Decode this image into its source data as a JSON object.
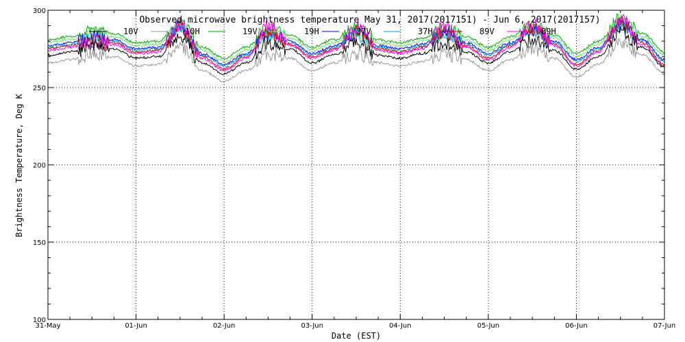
{
  "chart_data": {
    "type": "line",
    "title": "Observed microwave brightness temperature May 31, 2017(2017151) - Jun  6, 2017(2017157)",
    "xlabel": "Date (EST)",
    "ylabel": "Brightness Temperature, Deg K",
    "ylim": [
      100,
      300
    ],
    "yticks": [
      "100",
      "150",
      "200",
      "250",
      "300"
    ],
    "xticks": [
      "31-May",
      "01-Jun",
      "02-Jun",
      "03-Jun",
      "04-Jun",
      "05-Jun",
      "06-Jun",
      "07-Jun"
    ],
    "x_days": [
      0,
      1,
      2,
      3,
      4,
      5,
      6,
      7
    ],
    "grid": true,
    "legend_placement": "top",
    "legend": [
      {
        "name": "10V",
        "color": "#000000"
      },
      {
        "name": "10H",
        "color": "#999999"
      },
      {
        "name": "19V",
        "color": "#00aa00"
      },
      {
        "name": "19H",
        "color": "#77dd77"
      },
      {
        "name": "37V",
        "color": "#0000ff"
      },
      {
        "name": "37H",
        "color": "#00aacc"
      },
      {
        "name": "89V",
        "color": "#dd0000"
      },
      {
        "name": "89H",
        "color": "#ff00ff"
      }
    ],
    "series": [
      {
        "name": "19V",
        "color": "#00aa00",
        "x": [
          0,
          0.25,
          0.5,
          0.75,
          1.0,
          1.25,
          1.5,
          1.75,
          2.0,
          2.25,
          2.5,
          2.75,
          3.0,
          3.25,
          3.5,
          3.75,
          4.0,
          4.25,
          4.5,
          4.75,
          5.0,
          5.25,
          5.5,
          5.75,
          6.0,
          6.25,
          6.5,
          6.75,
          7.0
        ],
        "values": [
          281,
          283,
          286,
          285,
          279,
          280,
          292,
          276,
          269,
          276,
          288,
          284,
          276,
          281,
          288,
          281,
          279,
          282,
          288,
          283,
          276,
          283,
          290,
          284,
          272,
          280,
          294,
          285,
          273
        ]
      },
      {
        "name": "19H",
        "color": "#77dd77",
        "x": [
          0,
          0.25,
          0.5,
          0.75,
          1.0,
          1.25,
          1.5,
          1.75,
          2.0,
          2.25,
          2.5,
          2.75,
          3.0,
          3.25,
          3.5,
          3.75,
          4.0,
          4.25,
          4.5,
          4.75,
          5.0,
          5.25,
          5.5,
          5.75,
          6.0,
          6.25,
          6.5,
          6.75,
          7.0
        ],
        "values": [
          279,
          281,
          284,
          283,
          277,
          278,
          290,
          274,
          267,
          274,
          286,
          282,
          274,
          279,
          286,
          279,
          277,
          280,
          286,
          281,
          274,
          281,
          288,
          282,
          270,
          278,
          292,
          283,
          271
        ]
      },
      {
        "name": "37V",
        "color": "#0000ff",
        "x": [
          0,
          0.25,
          0.5,
          0.75,
          1.0,
          1.25,
          1.5,
          1.75,
          2.0,
          2.25,
          2.5,
          2.75,
          3.0,
          3.25,
          3.5,
          3.75,
          4.0,
          4.25,
          4.5,
          4.75,
          5.0,
          5.25,
          5.5,
          5.75,
          6.0,
          6.25,
          6.5,
          6.75,
          7.0
        ],
        "values": [
          277,
          279,
          282,
          281,
          275,
          276,
          289,
          272,
          265,
          272,
          285,
          280,
          272,
          277,
          285,
          277,
          275,
          278,
          285,
          279,
          272,
          279,
          287,
          280,
          268,
          276,
          291,
          281,
          268
        ]
      },
      {
        "name": "37H",
        "color": "#00aacc",
        "x": [
          0,
          0.25,
          0.5,
          0.75,
          1.0,
          1.25,
          1.5,
          1.75,
          2.0,
          2.25,
          2.5,
          2.75,
          3.0,
          3.25,
          3.5,
          3.75,
          4.0,
          4.25,
          4.5,
          4.75,
          5.0,
          5.25,
          5.5,
          5.75,
          6.0,
          6.25,
          6.5,
          6.75,
          7.0
        ],
        "values": [
          276,
          278,
          281,
          280,
          274,
          275,
          288,
          271,
          264,
          271,
          284,
          279,
          271,
          276,
          284,
          276,
          274,
          277,
          284,
          278,
          271,
          278,
          286,
          279,
          267,
          275,
          290,
          280,
          267
        ]
      },
      {
        "name": "89V",
        "color": "#dd0000",
        "x": [
          0,
          0.25,
          0.5,
          0.75,
          1.0,
          1.25,
          1.5,
          1.75,
          2.0,
          2.25,
          2.5,
          2.75,
          3.0,
          3.25,
          3.5,
          3.75,
          4.0,
          4.25,
          4.5,
          4.75,
          5.0,
          5.25,
          5.5,
          5.75,
          6.0,
          6.25,
          6.5,
          6.75,
          7.0
        ],
        "values": [
          275,
          277,
          280,
          279,
          273,
          274,
          289,
          270,
          262,
          270,
          286,
          278,
          270,
          275,
          286,
          275,
          273,
          276,
          286,
          277,
          269,
          277,
          288,
          278,
          265,
          274,
          292,
          279,
          265
        ]
      },
      {
        "name": "89H",
        "color": "#ff00ff",
        "x": [
          0,
          0.25,
          0.5,
          0.75,
          1.0,
          1.25,
          1.5,
          1.75,
          2.0,
          2.25,
          2.5,
          2.75,
          3.0,
          3.25,
          3.5,
          3.75,
          4.0,
          4.25,
          4.5,
          4.75,
          5.0,
          5.25,
          5.5,
          5.75,
          6.0,
          6.25,
          6.5,
          6.75,
          7.0
        ],
        "values": [
          274,
          276,
          279,
          278,
          272,
          273,
          291,
          269,
          261,
          269,
          290,
          277,
          269,
          274,
          290,
          274,
          272,
          275,
          290,
          276,
          268,
          276,
          291,
          277,
          264,
          273,
          294,
          278,
          264
        ]
      },
      {
        "name": "10V",
        "color": "#000000",
        "x": [
          0,
          0.25,
          0.5,
          0.75,
          1.0,
          1.25,
          1.5,
          1.75,
          2.0,
          2.25,
          2.5,
          2.75,
          3.0,
          3.25,
          3.5,
          3.75,
          4.0,
          4.25,
          4.5,
          4.75,
          5.0,
          5.25,
          5.5,
          5.75,
          6.0,
          6.25,
          6.5,
          6.75,
          7.0
        ],
        "values": [
          271,
          273,
          276,
          275,
          269,
          270,
          283,
          266,
          259,
          266,
          279,
          275,
          266,
          271,
          279,
          271,
          269,
          272,
          279,
          273,
          266,
          273,
          281,
          274,
          262,
          270,
          286,
          276,
          263
        ]
      },
      {
        "name": "10H",
        "color": "#999999",
        "x": [
          0,
          0.25,
          0.5,
          0.75,
          1.0,
          1.25,
          1.5,
          1.75,
          2.0,
          2.25,
          2.5,
          2.75,
          3.0,
          3.25,
          3.5,
          3.75,
          4.0,
          4.25,
          4.5,
          4.75,
          5.0,
          5.25,
          5.5,
          5.75,
          6.0,
          6.25,
          6.5,
          6.75,
          7.0
        ],
        "values": [
          266,
          268,
          271,
          270,
          264,
          265,
          277,
          261,
          254,
          261,
          272,
          269,
          261,
          266,
          272,
          266,
          264,
          267,
          272,
          268,
          261,
          268,
          275,
          269,
          257,
          265,
          280,
          271,
          259
        ]
      }
    ]
  }
}
